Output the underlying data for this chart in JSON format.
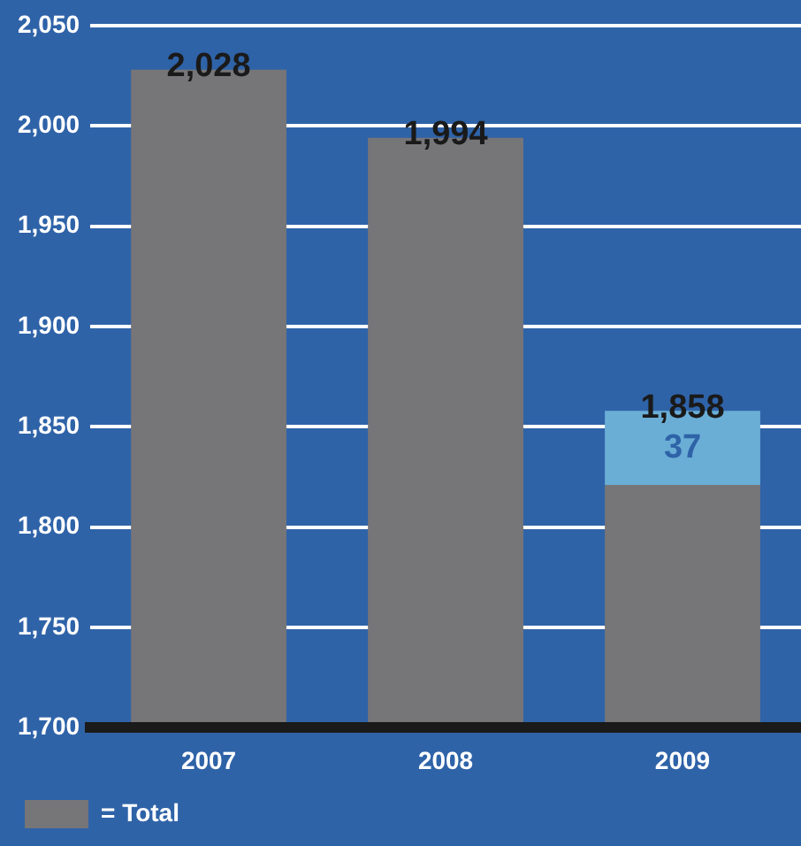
{
  "chart_data": {
    "type": "bar",
    "categories": [
      "2007",
      "2008",
      "2009"
    ],
    "series": [
      {
        "name": "= Total",
        "color": "#767578",
        "values": [
          2028,
          1994,
          1821
        ]
      },
      {
        "color": "#6aaed6",
        "values": [
          null,
          null,
          37
        ],
        "base": [
          null,
          null,
          1821
        ],
        "value_labels": [
          null,
          null,
          "37"
        ]
      }
    ],
    "totals": [
      "2,028",
      "1,994",
      "1,858"
    ],
    "ylim": [
      1700,
      2050
    ],
    "yticks": [
      {
        "value": 1700,
        "label": "1,700"
      },
      {
        "value": 1750,
        "label": "1,750"
      },
      {
        "value": 1800,
        "label": "1,800"
      },
      {
        "value": 1850,
        "label": "1,850"
      },
      {
        "value": 1900,
        "label": "1,900"
      },
      {
        "value": 1950,
        "label": "1,950"
      },
      {
        "value": 2000,
        "label": "2,000"
      },
      {
        "value": 2050,
        "label": "2,050"
      }
    ],
    "grid": "y",
    "legend": "bottom"
  }
}
